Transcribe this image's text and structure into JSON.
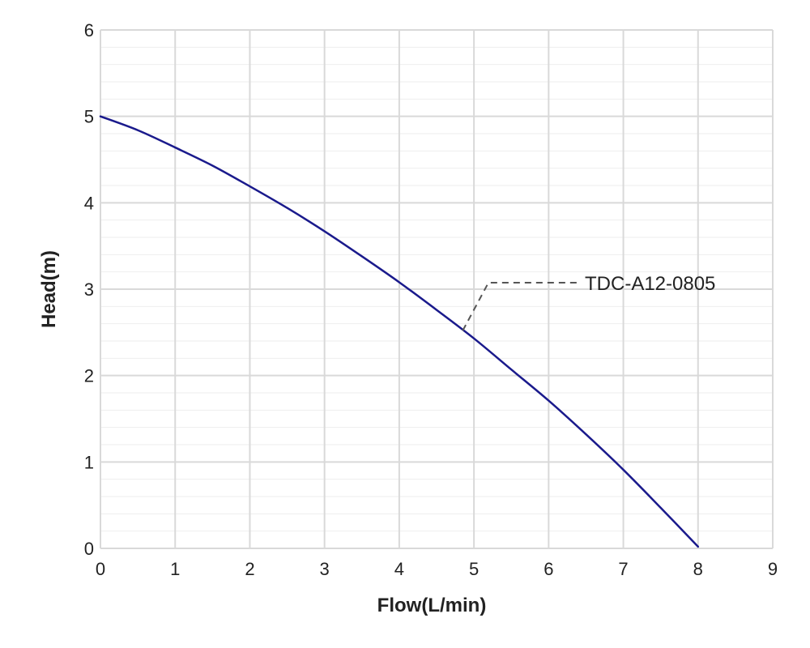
{
  "chart_data": {
    "type": "line",
    "title": "",
    "xlabel": "Flow(L/min)",
    "ylabel": "Head(m)",
    "xlim": [
      0,
      9
    ],
    "ylim": [
      0,
      6
    ],
    "x_ticks": [
      0,
      1,
      2,
      3,
      4,
      5,
      6,
      7,
      8,
      9
    ],
    "y_ticks": [
      0,
      1,
      2,
      3,
      4,
      5,
      6
    ],
    "grid": true,
    "minor_grid_y": true,
    "colors": {
      "series": "#1a1a8c",
      "grid_major": "#d9d9d9",
      "grid_minor": "#eeeeee",
      "annotation_line": "#555555"
    },
    "series": [
      {
        "name": "TDC-A12-0805",
        "x": [
          0,
          0.5,
          1,
          1.5,
          2,
          2.5,
          3,
          3.5,
          4,
          4.5,
          5,
          5.5,
          6,
          6.5,
          7,
          7.5,
          8
        ],
        "y": [
          5.0,
          4.84,
          4.64,
          4.43,
          4.19,
          3.94,
          3.67,
          3.38,
          3.08,
          2.76,
          2.43,
          2.07,
          1.71,
          1.32,
          0.91,
          0.47,
          0.02
        ]
      }
    ],
    "annotations": [
      {
        "text": "TDC-A12-0805",
        "series": "TDC-A12-0805",
        "at_x": 4.85,
        "at_y": 2.52
      }
    ]
  }
}
